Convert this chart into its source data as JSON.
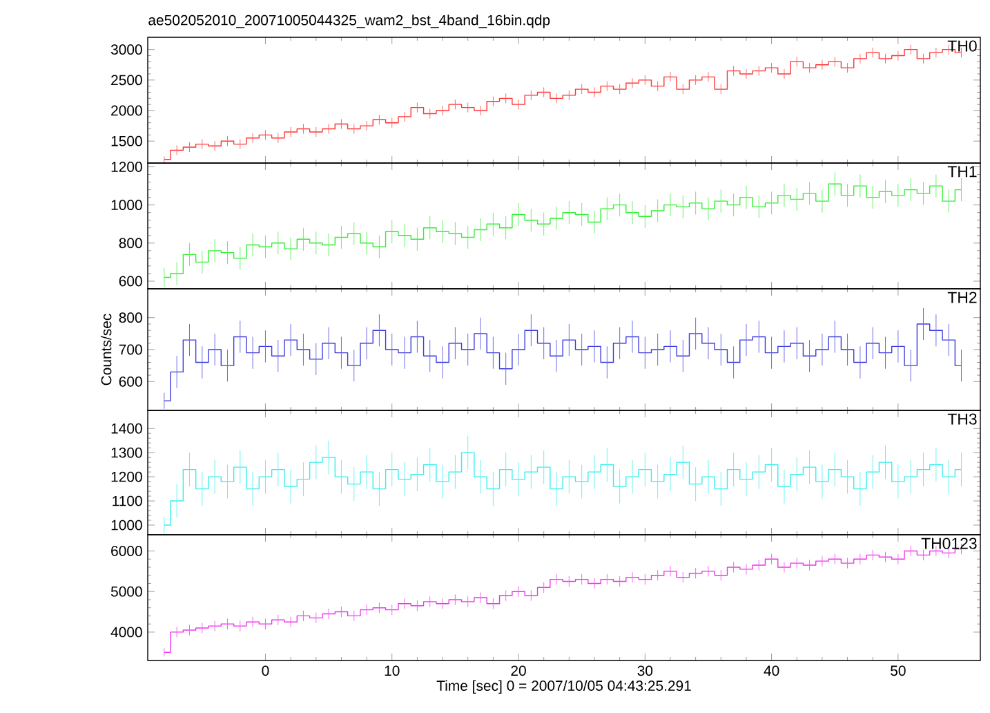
{
  "chart_data": [
    {
      "type": "step",
      "title": "ae502052010_20071005044325_wam2_bst_4band_16bin.qdp",
      "annotations": [
        "TH0"
      ],
      "tick_labels": "y",
      "x": [
        -8,
        -7,
        -6,
        -5,
        -4,
        -3,
        -2,
        -1,
        0,
        1,
        2,
        3,
        4,
        5,
        6,
        7,
        8,
        9,
        10,
        11,
        12,
        13,
        14,
        15,
        16,
        17,
        18,
        19,
        20,
        21,
        22,
        23,
        24,
        25,
        26,
        27,
        28,
        29,
        30,
        31,
        32,
        33,
        34,
        35,
        36,
        37,
        38,
        39,
        40,
        41,
        42,
        43,
        44,
        45,
        46,
        47,
        48,
        49,
        50,
        51,
        52,
        53,
        54,
        55
      ],
      "xlim": [
        -9.3,
        56.5
      ],
      "xticks": [
        0,
        10,
        20,
        30,
        40,
        50
      ],
      "ylim": [
        1140,
        3200
      ],
      "yticks": [
        1500,
        2000,
        2500,
        3000
      ],
      "series": [
        {
          "color": "#ff3333",
          "values": [
            1200,
            1350,
            1400,
            1450,
            1420,
            1500,
            1450,
            1550,
            1600,
            1550,
            1650,
            1700,
            1650,
            1700,
            1780,
            1700,
            1750,
            1850,
            1800,
            1900,
            2050,
            1950,
            2000,
            2100,
            2050,
            2000,
            2150,
            2200,
            2100,
            2250,
            2300,
            2200,
            2250,
            2350,
            2300,
            2400,
            2350,
            2450,
            2500,
            2400,
            2550,
            2350,
            2500,
            2550,
            2350,
            2650,
            2600,
            2650,
            2700,
            2600,
            2800,
            2700,
            2750,
            2800,
            2700,
            2850,
            2950,
            2850,
            2900,
            3000,
            2850,
            2950,
            3000,
            2950
          ],
          "errors": [
            50,
            80,
            80,
            80,
            80,
            80,
            80,
            80,
            80,
            80,
            80,
            80,
            80,
            80,
            80,
            80,
            80,
            80,
            80,
            80,
            80,
            80,
            80,
            80,
            80,
            80,
            80,
            80,
            80,
            80,
            80,
            80,
            80,
            80,
            80,
            80,
            80,
            80,
            80,
            80,
            80,
            80,
            80,
            80,
            80,
            80,
            80,
            80,
            80,
            80,
            80,
            80,
            80,
            80,
            80,
            80,
            80,
            80,
            80,
            80,
            80,
            80,
            80,
            80
          ]
        }
      ]
    },
    {
      "type": "step",
      "annotations": [
        "TH1"
      ],
      "tick_labels": "y",
      "x": [
        -8,
        -7,
        -6,
        -5,
        -4,
        -3,
        -2,
        -1,
        0,
        1,
        2,
        3,
        4,
        5,
        6,
        7,
        8,
        9,
        10,
        11,
        12,
        13,
        14,
        15,
        16,
        17,
        18,
        19,
        20,
        21,
        22,
        23,
        24,
        25,
        26,
        27,
        28,
        29,
        30,
        31,
        32,
        33,
        34,
        35,
        36,
        37,
        38,
        39,
        40,
        41,
        42,
        43,
        44,
        45,
        46,
        47,
        48,
        49,
        50,
        51,
        52,
        53,
        54,
        55
      ],
      "xlim": [
        -9.3,
        56.5
      ],
      "xticks": [
        0,
        10,
        20,
        30,
        40,
        50
      ],
      "ylim": [
        560,
        1220
      ],
      "yticks": [
        600,
        800,
        1000,
        1200
      ],
      "series": [
        {
          "color": "#33ee33",
          "values": [
            620,
            640,
            740,
            700,
            760,
            750,
            720,
            790,
            780,
            800,
            770,
            820,
            800,
            790,
            830,
            850,
            800,
            780,
            860,
            840,
            820,
            880,
            860,
            850,
            830,
            870,
            900,
            880,
            950,
            920,
            900,
            930,
            960,
            950,
            910,
            980,
            1000,
            960,
            940,
            970,
            1000,
            990,
            1010,
            980,
            1020,
            1000,
            1040,
            990,
            1010,
            1050,
            1030,
            1060,
            1020,
            1110,
            1050,
            1100,
            1040,
            1070,
            1050,
            1080,
            1060,
            1100,
            1020,
            1080
          ],
          "errors": [
            50,
            60,
            60,
            60,
            60,
            60,
            60,
            60,
            60,
            60,
            60,
            60,
            60,
            60,
            60,
            60,
            60,
            60,
            60,
            60,
            60,
            60,
            60,
            60,
            60,
            60,
            60,
            60,
            60,
            60,
            60,
            60,
            60,
            60,
            60,
            60,
            60,
            60,
            60,
            60,
            60,
            60,
            60,
            60,
            60,
            60,
            60,
            60,
            60,
            60,
            60,
            60,
            60,
            60,
            60,
            60,
            60,
            60,
            60,
            60,
            60,
            60,
            60,
            60
          ]
        }
      ]
    },
    {
      "type": "step",
      "ylabel": "Counts/sec",
      "annotations": [
        "TH2"
      ],
      "tick_labels": "y",
      "x": [
        -8,
        -7,
        -6,
        -5,
        -4,
        -3,
        -2,
        -1,
        0,
        1,
        2,
        3,
        4,
        5,
        6,
        7,
        8,
        9,
        10,
        11,
        12,
        13,
        14,
        15,
        16,
        17,
        18,
        19,
        20,
        21,
        22,
        23,
        24,
        25,
        26,
        27,
        28,
        29,
        30,
        31,
        32,
        33,
        34,
        35,
        36,
        37,
        38,
        39,
        40,
        41,
        42,
        43,
        44,
        45,
        46,
        47,
        48,
        49,
        50,
        51,
        52,
        53,
        54,
        55
      ],
      "xlim": [
        -9.3,
        56.5
      ],
      "xticks": [
        0,
        10,
        20,
        30,
        40,
        50
      ],
      "ylim": [
        510,
        890
      ],
      "yticks": [
        600,
        700,
        800
      ],
      "series": [
        {
          "color": "#3a3ae0",
          "values": [
            540,
            630,
            730,
            660,
            700,
            650,
            740,
            690,
            710,
            680,
            730,
            700,
            670,
            720,
            690,
            650,
            720,
            760,
            700,
            690,
            740,
            680,
            660,
            720,
            700,
            750,
            690,
            640,
            700,
            760,
            720,
            680,
            730,
            700,
            710,
            660,
            720,
            740,
            690,
            700,
            710,
            680,
            750,
            720,
            700,
            660,
            730,
            740,
            690,
            710,
            720,
            680,
            700,
            740,
            700,
            660,
            720,
            690,
            710,
            650,
            780,
            760,
            730,
            650
          ],
          "errors": [
            25,
            50,
            50,
            50,
            50,
            50,
            50,
            50,
            50,
            50,
            50,
            50,
            50,
            50,
            50,
            50,
            50,
            50,
            50,
            50,
            50,
            50,
            50,
            50,
            50,
            50,
            50,
            50,
            50,
            50,
            50,
            50,
            50,
            50,
            50,
            50,
            50,
            50,
            50,
            50,
            50,
            50,
            50,
            50,
            50,
            50,
            50,
            50,
            50,
            50,
            50,
            50,
            50,
            50,
            50,
            50,
            50,
            50,
            50,
            50,
            50,
            50,
            50,
            50
          ]
        }
      ]
    },
    {
      "type": "step",
      "annotations": [
        "TH3"
      ],
      "tick_labels": "y",
      "x": [
        -8,
        -7,
        -6,
        -5,
        -4,
        -3,
        -2,
        -1,
        0,
        1,
        2,
        3,
        4,
        5,
        6,
        7,
        8,
        9,
        10,
        11,
        12,
        13,
        14,
        15,
        16,
        17,
        18,
        19,
        20,
        21,
        22,
        23,
        24,
        25,
        26,
        27,
        28,
        29,
        30,
        31,
        32,
        33,
        34,
        35,
        36,
        37,
        38,
        39,
        40,
        41,
        42,
        43,
        44,
        45,
        46,
        47,
        48,
        49,
        50,
        51,
        52,
        53,
        54,
        55
      ],
      "xlim": [
        -9.3,
        56.5
      ],
      "xticks": [
        0,
        10,
        20,
        30,
        40,
        50
      ],
      "ylim": [
        960,
        1475
      ],
      "yticks": [
        1000,
        1100,
        1200,
        1300,
        1400
      ],
      "series": [
        {
          "color": "#33eeee",
          "values": [
            1000,
            1100,
            1230,
            1150,
            1200,
            1180,
            1240,
            1150,
            1200,
            1230,
            1160,
            1190,
            1260,
            1280,
            1200,
            1170,
            1220,
            1150,
            1230,
            1190,
            1210,
            1250,
            1180,
            1220,
            1300,
            1200,
            1150,
            1230,
            1190,
            1220,
            1240,
            1150,
            1200,
            1180,
            1220,
            1250,
            1160,
            1200,
            1230,
            1180,
            1210,
            1260,
            1170,
            1200,
            1150,
            1230,
            1190,
            1220,
            1250,
            1160,
            1210,
            1240,
            1180,
            1230,
            1200,
            1150,
            1220,
            1260,
            1180,
            1200,
            1230,
            1250,
            1200,
            1230
          ],
          "errors": [
            35,
            70,
            70,
            70,
            70,
            70,
            70,
            70,
            70,
            70,
            70,
            70,
            70,
            70,
            70,
            70,
            70,
            70,
            70,
            70,
            70,
            70,
            70,
            70,
            70,
            70,
            70,
            70,
            70,
            70,
            70,
            70,
            70,
            70,
            70,
            70,
            70,
            70,
            70,
            70,
            70,
            70,
            70,
            70,
            70,
            70,
            70,
            70,
            70,
            70,
            70,
            70,
            70,
            70,
            70,
            70,
            70,
            70,
            70,
            70,
            70,
            70,
            70,
            70
          ]
        }
      ]
    },
    {
      "type": "step",
      "xlabel": "Time [sec] 0 = 2007/10/05 04:43:25.291",
      "annotations": [
        "TH0123"
      ],
      "x": [
        -8,
        -7,
        -6,
        -5,
        -4,
        -3,
        -2,
        -1,
        0,
        1,
        2,
        3,
        4,
        5,
        6,
        7,
        8,
        9,
        10,
        11,
        12,
        13,
        14,
        15,
        16,
        17,
        18,
        19,
        20,
        21,
        22,
        23,
        24,
        25,
        26,
        27,
        28,
        29,
        30,
        31,
        32,
        33,
        34,
        35,
        36,
        37,
        38,
        39,
        40,
        41,
        42,
        43,
        44,
        45,
        46,
        47,
        48,
        49,
        50,
        51,
        52,
        53,
        54,
        55
      ],
      "xlim": [
        -9.3,
        56.5
      ],
      "xticks": [
        0,
        10,
        20,
        30,
        40,
        50
      ],
      "ylim": [
        3300,
        6400
      ],
      "yticks": [
        4000,
        5000,
        6000
      ],
      "series": [
        {
          "color": "#ee33ee",
          "values": [
            3500,
            4000,
            4050,
            4100,
            4150,
            4200,
            4150,
            4250,
            4200,
            4300,
            4250,
            4400,
            4350,
            4450,
            4500,
            4400,
            4550,
            4600,
            4550,
            4700,
            4650,
            4750,
            4700,
            4800,
            4750,
            4850,
            4700,
            4900,
            5000,
            4900,
            5100,
            5300,
            5250,
            5300,
            5200,
            5300,
            5250,
            5350,
            5300,
            5400,
            5500,
            5350,
            5450,
            5500,
            5400,
            5600,
            5550,
            5650,
            5800,
            5600,
            5700,
            5650,
            5750,
            5800,
            5700,
            5800,
            5900,
            5850,
            5800,
            6000,
            5900,
            6000,
            5950,
            6050
          ],
          "errors": [
            100,
            130,
            130,
            130,
            130,
            130,
            130,
            130,
            130,
            130,
            130,
            130,
            130,
            130,
            130,
            130,
            130,
            130,
            130,
            130,
            130,
            130,
            130,
            130,
            130,
            130,
            130,
            130,
            130,
            130,
            130,
            130,
            130,
            130,
            130,
            130,
            130,
            130,
            130,
            130,
            130,
            130,
            130,
            130,
            130,
            130,
            130,
            130,
            130,
            130,
            130,
            130,
            130,
            130,
            130,
            130,
            130,
            130,
            130,
            130,
            130,
            130,
            130,
            130
          ]
        }
      ]
    }
  ]
}
